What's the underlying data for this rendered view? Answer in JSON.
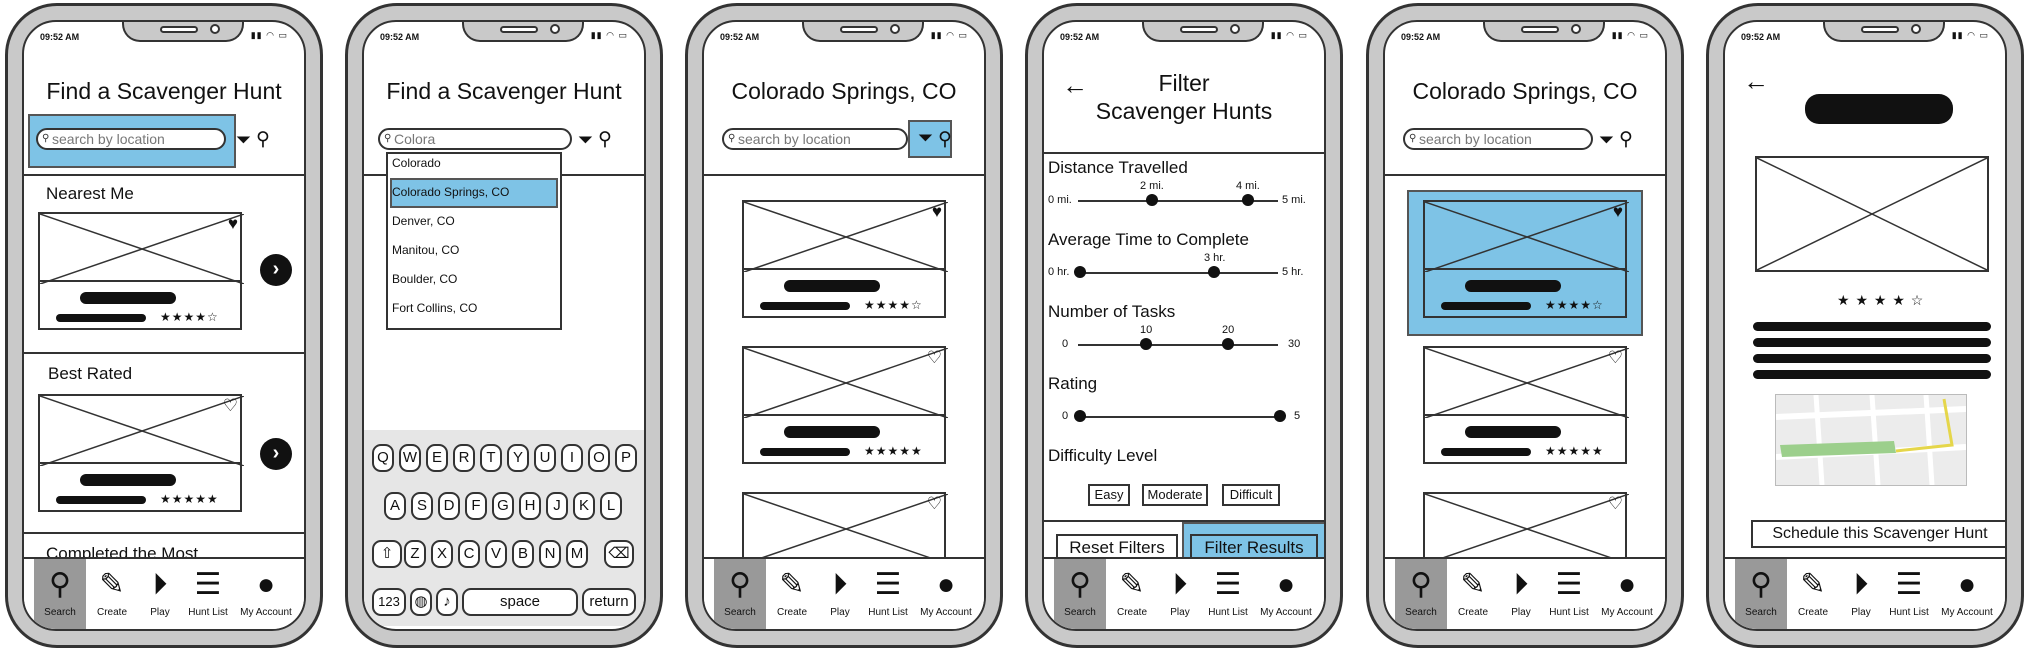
{
  "status_time": "09:52 AM",
  "tabs": [
    "Search",
    "Create",
    "Play",
    "Hunt List",
    "My Account"
  ],
  "tab_icons": [
    "search-icon",
    "pencil-icon",
    "play-icon",
    "list-icon",
    "user-icon"
  ],
  "screen1": {
    "title": "Find a Scavenger Hunt",
    "search_placeholder": "search by location",
    "sections": [
      "Nearest Me",
      "Best Rated",
      "Completed the Most"
    ]
  },
  "screen2": {
    "title": "Find a Scavenger Hunt",
    "search_value": "Colora",
    "suggestions": [
      "Colorado",
      "Colorado Springs, CO",
      "Denver, CO",
      "Manitou, CO",
      "Boulder, CO",
      "Fort Collins, CO"
    ],
    "keyboard_rows": [
      [
        "Q",
        "W",
        "E",
        "R",
        "T",
        "Y",
        "U",
        "I",
        "O",
        "P"
      ],
      [
        "A",
        "S",
        "D",
        "F",
        "G",
        "H",
        "J",
        "K",
        "L"
      ],
      [
        "Z",
        "X",
        "C",
        "V",
        "B",
        "N",
        "M"
      ]
    ],
    "key_123": "123",
    "key_space": "space",
    "key_return": "return"
  },
  "screen3": {
    "title": "Colorado Springs, CO",
    "search_placeholder": "search by location"
  },
  "screen4": {
    "title_line1": "Filter",
    "title_line2": "Scavenger Hunts",
    "distance_label": "Distance Travelled",
    "distance_min": "0 mi.",
    "distance_max": "5 mi.",
    "distance_low": "2 mi.",
    "distance_high": "4 mi.",
    "time_label": "Average Time to Complete",
    "time_min": "0 hr.",
    "time_max": "5 hr.",
    "time_val": "3 hr.",
    "tasks_label": "Number of Tasks",
    "tasks_min": "0",
    "tasks_max": "30",
    "tasks_low": "10",
    "tasks_high": "20",
    "rating_label": "Rating",
    "rating_min": "0",
    "rating_max": "5",
    "difficulty_label": "Difficulty Level",
    "difficulty_options": [
      "Easy",
      "Moderate",
      "Difficult"
    ],
    "reset_label": "Reset Filters",
    "apply_label": "Filter Results"
  },
  "screen5": {
    "title": "Colorado Springs, CO",
    "search_placeholder": "search by location"
  },
  "screen6": {
    "rating_stars": "★ ★ ★ ★ ☆",
    "schedule_label": "Schedule this Scavenger Hunt"
  },
  "ratings": {
    "four": "★★★★☆",
    "five": "★★★★★"
  },
  "colors": {
    "highlight": "#7ec3e6",
    "frame": "#c9c9c9"
  }
}
